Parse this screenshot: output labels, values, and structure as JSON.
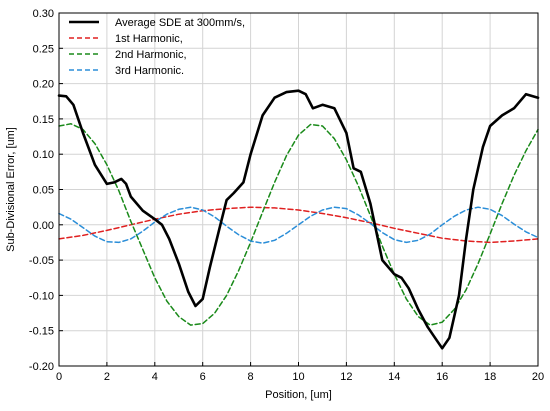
{
  "chart_data": {
    "type": "line",
    "title": "",
    "xlabel": "Position, [um]",
    "ylabel": "Sub-Divisional Error, [um]",
    "xlim": [
      0,
      20
    ],
    "ylim": [
      -0.2,
      0.3
    ],
    "xticks": [
      "0",
      "2",
      "4",
      "6",
      "8",
      "10",
      "12",
      "14",
      "16",
      "18",
      "20"
    ],
    "yticks": [
      "0.30",
      "0.25",
      "0.20",
      "0.15",
      "0.10",
      "0.05",
      "0.00",
      "-0.05",
      "-0.10",
      "-0.15",
      "-0.20"
    ],
    "grid": true,
    "legend_position": "top-left",
    "series": [
      {
        "name": "Average SDE at 300mm/s,",
        "color": "#000000",
        "style": "solid",
        "x": [
          0,
          0.3,
          0.6,
          1.0,
          1.5,
          2.0,
          2.3,
          2.6,
          2.8,
          3.0,
          3.5,
          4.0,
          4.3,
          4.6,
          5.0,
          5.4,
          5.7,
          6.0,
          6.3,
          6.7,
          7.0,
          7.3,
          7.7,
          8.0,
          8.5,
          9.0,
          9.5,
          10.0,
          10.3,
          10.6,
          11.0,
          11.5,
          12.0,
          12.3,
          12.6,
          13.0,
          13.5,
          14.0,
          14.3,
          14.6,
          15.0,
          15.4,
          15.8,
          16.0,
          16.3,
          16.7,
          17.0,
          17.3,
          17.7,
          18.0,
          18.5,
          19.0,
          19.5,
          20.0
        ],
        "y": [
          0.183,
          0.182,
          0.17,
          0.13,
          0.085,
          0.058,
          0.06,
          0.065,
          0.058,
          0.04,
          0.02,
          0.008,
          0.0,
          -0.02,
          -0.055,
          -0.095,
          -0.115,
          -0.105,
          -0.06,
          -0.005,
          0.035,
          0.045,
          0.06,
          0.1,
          0.155,
          0.18,
          0.188,
          0.19,
          0.185,
          0.165,
          0.17,
          0.165,
          0.13,
          0.08,
          0.075,
          0.03,
          -0.05,
          -0.07,
          -0.075,
          -0.09,
          -0.12,
          -0.145,
          -0.165,
          -0.175,
          -0.16,
          -0.1,
          -0.02,
          0.05,
          0.11,
          0.14,
          0.155,
          0.165,
          0.185,
          0.18
        ]
      },
      {
        "name": "1st Harmonic,",
        "color": "#e02020",
        "style": "dashed",
        "x": [
          0,
          1,
          2,
          3,
          4,
          5,
          6,
          7,
          8,
          9,
          10,
          11,
          12,
          13,
          14,
          15,
          16,
          17,
          18,
          19,
          20
        ],
        "y": [
          -0.02,
          -0.015,
          -0.008,
          0.0,
          0.008,
          0.015,
          0.02,
          0.023,
          0.025,
          0.024,
          0.021,
          0.016,
          0.01,
          0.003,
          -0.005,
          -0.012,
          -0.019,
          -0.023,
          -0.025,
          -0.023,
          -0.02
        ]
      },
      {
        "name": "2nd Harmonic,",
        "color": "#1a8a1a",
        "style": "dashed",
        "x": [
          0,
          0.5,
          1.0,
          1.5,
          2.0,
          2.5,
          3.0,
          3.5,
          4.0,
          4.5,
          5.0,
          5.5,
          6.0,
          6.5,
          7.0,
          7.5,
          8.0,
          8.5,
          9.0,
          9.5,
          10.0,
          10.5,
          11.0,
          11.5,
          12.0,
          12.5,
          13.0,
          13.5,
          14.0,
          14.5,
          15.0,
          15.5,
          16.0,
          16.5,
          17.0,
          17.5,
          18.0,
          18.5,
          19.0,
          19.5,
          20.0
        ],
        "y": [
          0.14,
          0.143,
          0.135,
          0.115,
          0.085,
          0.048,
          0.005,
          -0.035,
          -0.075,
          -0.108,
          -0.13,
          -0.142,
          -0.14,
          -0.125,
          -0.1,
          -0.065,
          -0.025,
          0.018,
          0.06,
          0.098,
          0.127,
          0.142,
          0.14,
          0.122,
          0.092,
          0.055,
          0.013,
          -0.03,
          -0.07,
          -0.105,
          -0.13,
          -0.142,
          -0.138,
          -0.12,
          -0.092,
          -0.055,
          -0.013,
          0.03,
          0.07,
          0.105,
          0.135
        ]
      },
      {
        "name": "3rd Harmonic.",
        "color": "#2b8ed8",
        "style": "dashed",
        "x": [
          0,
          0.5,
          1.0,
          1.5,
          2.0,
          2.5,
          3.0,
          3.5,
          4.0,
          4.5,
          5.0,
          5.5,
          6.0,
          6.5,
          7.0,
          7.5,
          8.0,
          8.5,
          9.0,
          9.5,
          10.0,
          10.5,
          11.0,
          11.5,
          12.0,
          12.5,
          13.0,
          13.5,
          14.0,
          14.5,
          15.0,
          15.5,
          16.0,
          16.5,
          17.0,
          17.5,
          18.0,
          18.5,
          19.0,
          19.5,
          20.0
        ],
        "y": [
          0.016,
          0.008,
          -0.004,
          -0.016,
          -0.024,
          -0.025,
          -0.02,
          -0.009,
          0.004,
          0.015,
          0.022,
          0.025,
          0.021,
          0.011,
          -0.002,
          -0.014,
          -0.023,
          -0.026,
          -0.022,
          -0.012,
          0.0,
          0.012,
          0.021,
          0.025,
          0.023,
          0.014,
          0.002,
          -0.011,
          -0.021,
          -0.025,
          -0.022,
          -0.013,
          0.0,
          0.012,
          0.021,
          0.025,
          0.022,
          0.013,
          0.001,
          -0.01,
          -0.018
        ]
      }
    ]
  }
}
